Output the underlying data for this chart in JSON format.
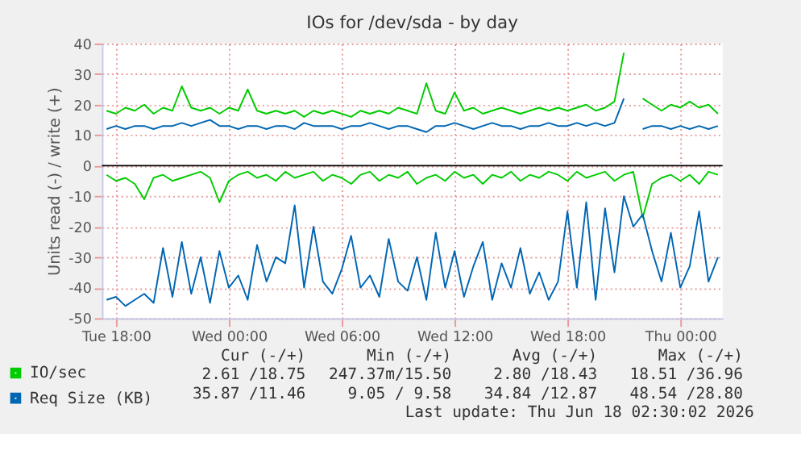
{
  "chart_data": {
    "type": "line",
    "title": "IOs for /dev/sda - by day",
    "ylabel": "Units read (-) / write (+)",
    "x": [
      "2026-06-16T17:30",
      "2026-06-16T18:00",
      "2026-06-16T18:30",
      "2026-06-16T19:00",
      "2026-06-16T19:30",
      "2026-06-16T20:00",
      "2026-06-16T20:30",
      "2026-06-16T21:00",
      "2026-06-16T21:30",
      "2026-06-16T22:00",
      "2026-06-16T22:30",
      "2026-06-16T23:00",
      "2026-06-16T23:30",
      "2026-06-17T00:00",
      "2026-06-17T00:30",
      "2026-06-17T01:00",
      "2026-06-17T01:30",
      "2026-06-17T02:00",
      "2026-06-17T02:30",
      "2026-06-17T03:00",
      "2026-06-17T03:30",
      "2026-06-17T04:00",
      "2026-06-17T04:30",
      "2026-06-17T05:00",
      "2026-06-17T05:30",
      "2026-06-17T06:00",
      "2026-06-17T06:30",
      "2026-06-17T07:00",
      "2026-06-17T07:30",
      "2026-06-17T08:00",
      "2026-06-17T08:30",
      "2026-06-17T09:00",
      "2026-06-17T09:30",
      "2026-06-17T10:00",
      "2026-06-17T10:30",
      "2026-06-17T11:00",
      "2026-06-17T11:30",
      "2026-06-17T12:00",
      "2026-06-17T12:30",
      "2026-06-17T13:00",
      "2026-06-17T13:30",
      "2026-06-17T14:00",
      "2026-06-17T14:30",
      "2026-06-17T15:00",
      "2026-06-17T15:30",
      "2026-06-17T16:00",
      "2026-06-17T16:30",
      "2026-06-17T17:00",
      "2026-06-17T17:30",
      "2026-06-17T18:00",
      "2026-06-17T18:30",
      "2026-06-17T19:00",
      "2026-06-17T19:30",
      "2026-06-17T20:00",
      "2026-06-17T20:30",
      "2026-06-17T21:00",
      "2026-06-17T21:30",
      "2026-06-17T22:00",
      "2026-06-17T22:30",
      "2026-06-17T23:00",
      "2026-06-17T23:30",
      "2026-06-18T00:00",
      "2026-06-18T00:30",
      "2026-06-18T01:00",
      "2026-06-18T01:30",
      "2026-06-18T02:00"
    ],
    "series": [
      {
        "name": "IO/sec",
        "color": "#00cc00",
        "values": [
          18,
          17,
          19,
          18,
          20,
          17,
          19,
          18,
          26,
          19,
          18,
          19,
          17,
          19,
          18,
          25,
          18,
          17,
          18,
          17,
          18,
          16,
          18,
          17,
          18,
          17,
          16,
          18,
          17,
          18,
          17,
          19,
          18,
          17,
          27,
          18,
          17,
          24,
          18,
          19,
          17,
          18,
          19,
          18,
          17,
          18,
          19,
          18,
          19,
          18,
          19,
          20,
          18,
          19,
          21,
          37,
          null,
          22,
          20,
          18,
          20,
          19,
          21,
          19,
          20,
          17
        ]
      },
      {
        "name": "Req Size (KB)",
        "color": "#0066b3",
        "values": [
          12,
          13,
          12,
          13,
          13,
          12,
          13,
          13,
          14,
          13,
          14,
          15,
          13,
          13,
          12,
          13,
          13,
          12,
          13,
          13,
          12,
          14,
          13,
          13,
          13,
          12,
          13,
          13,
          14,
          13,
          12,
          13,
          13,
          12,
          11,
          13,
          13,
          14,
          13,
          12,
          13,
          14,
          13,
          13,
          12,
          13,
          13,
          14,
          13,
          13,
          14,
          13,
          14,
          13,
          14,
          22,
          null,
          12,
          13,
          13,
          12,
          13,
          12,
          13,
          12,
          13
        ]
      },
      {
        "color": "#00cc00",
        "values": [
          -3,
          -5,
          -4,
          -6,
          -11,
          -4,
          -3,
          -5,
          -4,
          -3,
          -2,
          -4,
          -12,
          -5,
          -3,
          -2,
          -4,
          -3,
          -5,
          -2,
          -4,
          -3,
          -2,
          -5,
          -3,
          -4,
          -6,
          -3,
          -2,
          -5,
          -3,
          -4,
          -2,
          -6,
          -4,
          -3,
          -5,
          -2,
          -4,
          -3,
          -6,
          -3,
          -4,
          -2,
          -5,
          -3,
          -4,
          -2,
          -3,
          -5,
          -2,
          -4,
          -3,
          -2,
          -5,
          -3,
          -2,
          -17,
          -6,
          -4,
          -3,
          -5,
          -3,
          -6,
          -2,
          -3
        ]
      },
      {
        "color": "#0066b3",
        "values": [
          -44,
          -43,
          -46,
          -44,
          -42,
          -45,
          -27,
          -43,
          -25,
          -42,
          -30,
          -45,
          -28,
          -40,
          -36,
          -44,
          -26,
          -38,
          -30,
          -32,
          -13,
          -40,
          -20,
          -38,
          -42,
          -34,
          -23,
          -40,
          -36,
          -43,
          -24,
          -38,
          -41,
          -30,
          -44,
          -22,
          -40,
          -28,
          -43,
          -33,
          -25,
          -44,
          -32,
          -40,
          -27,
          -42,
          -35,
          -44,
          -38,
          -15,
          -40,
          -12,
          -44,
          -14,
          -35,
          -10,
          -20,
          -16,
          -28,
          -38,
          -22,
          -40,
          -33,
          -15,
          -38,
          -30
        ]
      }
    ],
    "xlim": [
      "2026-06-16T17:15",
      "2026-06-18T02:15"
    ],
    "xticks": [
      {
        "value": "2026-06-16T18:00",
        "label": "Tue 18:00"
      },
      {
        "value": "2026-06-17T00:00",
        "label": "Wed 00:00"
      },
      {
        "value": "2026-06-17T06:00",
        "label": "Wed 06:00"
      },
      {
        "value": "2026-06-17T12:00",
        "label": "Wed 12:00"
      },
      {
        "value": "2026-06-17T18:00",
        "label": "Wed 18:00"
      },
      {
        "value": "2026-06-18T00:00",
        "label": "Thu 00:00"
      }
    ],
    "ylim": [
      -50,
      40
    ],
    "yticks": [
      -50,
      -40,
      -30,
      -20,
      -10,
      0,
      10,
      20,
      30,
      40
    ],
    "ref_lines": [
      {
        "axis": "y",
        "value": 0,
        "color": "#000000"
      }
    ],
    "grid": true,
    "legend": "bottom left",
    "marker": "none",
    "line_style": "solid",
    "annotations": [
      "Cur (-/+)",
      "Min (-/+)",
      "Avg (-/+)",
      "Max (-/+)",
      "2.61 /18.75",
      "247.37m/15.50",
      "2.80 /18.43",
      "18.51 /36.96",
      "35.87 /11.46",
      "9.05 / 9.58",
      "34.84 /12.87",
      "48.54 /28.80",
      "Last update: Thu Jun 18 02:30:02 2026"
    ]
  }
}
